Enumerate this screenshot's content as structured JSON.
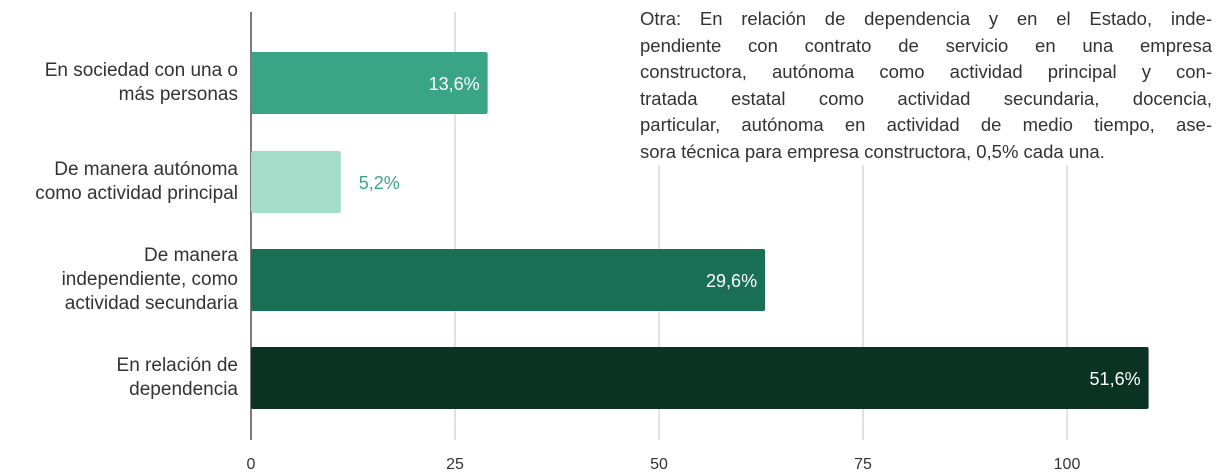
{
  "chart_data": {
    "type": "hbar",
    "categories": [
      [
        "En sociedad con una o",
        "más personas"
      ],
      [
        "De manera autónoma",
        "como actividad principal"
      ],
      [
        "De manera",
        "independiente, como",
        "actividad secundaria"
      ],
      [
        "En relación de",
        "dependencia"
      ]
    ],
    "values": [
      29,
      11,
      63,
      110
    ],
    "bar_labels": [
      "13,6%",
      "5,2%",
      "29,6%",
      "51,6%"
    ],
    "colors": [
      "#3aa584",
      "#a3dcc8",
      "#1a7055",
      "#0b3324"
    ],
    "xlim": [
      0,
      100
    ],
    "xticks": [
      0,
      25,
      50,
      75,
      100
    ],
    "grid": true,
    "annotation": [
      "Otra: En relación de dependencia y en el Estado, inde-",
      "pendiente con contrato de servicio en una empresa",
      "constructora, autónoma como actividad principal y con-",
      "tratada estatal como actividad secundaria, docencia,",
      "particular, autónoma en actividad de medio tiempo, ase-",
      "sora técnica para empresa constructora, 0,5% cada una."
    ]
  }
}
